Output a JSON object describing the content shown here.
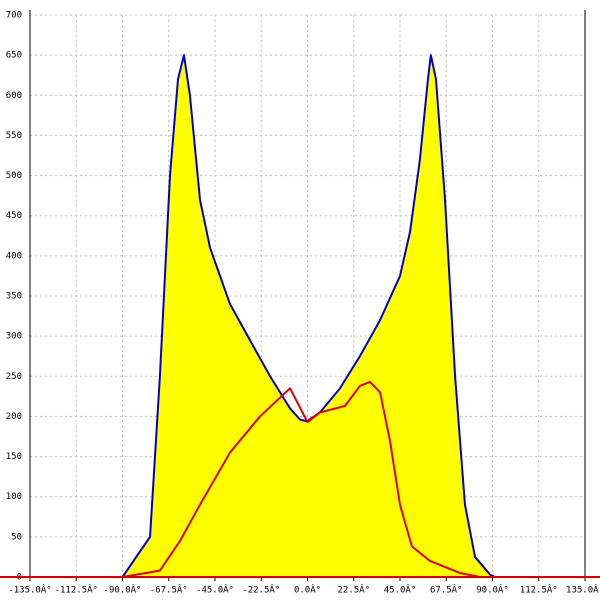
{
  "chart_data": {
    "type": "area",
    "xlim": [
      -135,
      135
    ],
    "ylim": [
      0,
      700
    ],
    "xticks": [
      {
        "value": -135,
        "label": "-135.0Â°"
      },
      {
        "value": -112.5,
        "label": "-112.5Â°"
      },
      {
        "value": -90,
        "label": "-90.0Â°"
      },
      {
        "value": -67.5,
        "label": "-67.5Â°"
      },
      {
        "value": -45,
        "label": "-45.0Â°"
      },
      {
        "value": -22.5,
        "label": "-22.5Â°"
      },
      {
        "value": 0,
        "label": "0.0Â°"
      },
      {
        "value": 22.5,
        "label": "22.5Â°"
      },
      {
        "value": 45,
        "label": "45.0Â°"
      },
      {
        "value": 67.5,
        "label": "67.5Â°"
      },
      {
        "value": 90,
        "label": "90.0Â°"
      },
      {
        "value": 112.5,
        "label": "112.5Â°"
      },
      {
        "value": 135,
        "label": "135.0Â°"
      }
    ],
    "yticks": [
      0,
      50,
      100,
      150,
      200,
      250,
      300,
      350,
      400,
      450,
      500,
      550,
      600,
      650,
      700
    ],
    "grid": true,
    "series": [
      {
        "color": "#0000cc",
        "fill": "#ffff00",
        "x": [
          -90,
          -76.6,
          -71.8,
          -66.9,
          -63,
          -60.1,
          -57.2,
          -52.3,
          -47.4,
          -37.7,
          -28,
          -18.2,
          -8.5,
          -3.6,
          -0.2,
          6.1,
          15.8,
          25.5,
          35.3,
          45,
          49.9,
          54.7,
          58.6,
          60,
          62.5,
          66.9,
          71.8,
          76.6,
          81.5,
          88.8,
          91.2
        ],
        "values": [
          0,
          50,
          250,
          500,
          620,
          650,
          600,
          470,
          410,
          340,
          295,
          250,
          210,
          196,
          194,
          205,
          235,
          275,
          320,
          375,
          430,
          520,
          620,
          650,
          620,
          470,
          250,
          90,
          25,
          3,
          0
        ]
      },
      {
        "color": "#dd0000",
        "x": [
          -90,
          -71.8,
          -62,
          -52.3,
          -37.7,
          -23.1,
          -8.5,
          0,
          6.1,
          18.2,
          25.5,
          30.4,
          35.3,
          40.1,
          45,
          50.8,
          59.6,
          74.1,
          83.8
        ],
        "values": [
          0,
          8,
          45,
          90,
          155,
          200,
          235,
          193,
          205,
          213,
          238,
          243,
          230,
          170,
          90,
          38,
          20,
          5,
          0
        ]
      }
    ]
  }
}
